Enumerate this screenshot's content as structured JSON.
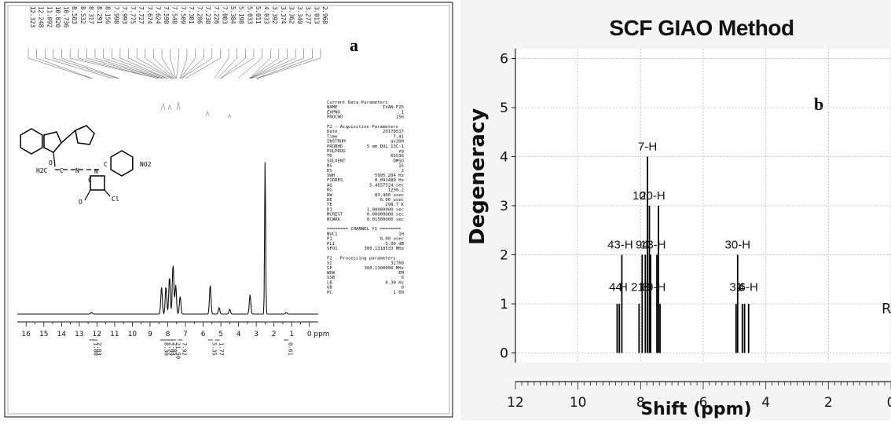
{
  "panel_a": {
    "panel_letter": "a",
    "top_peak_labels": [
      "12.323",
      "12.248",
      "11.092",
      "10.820",
      "10.736",
      "8.503",
      "8.532",
      "8.317",
      "8.291",
      "8.156",
      "7.998",
      "7.993",
      "7.775",
      "7.727",
      "7.674",
      "7.624",
      "7.590",
      "7.548",
      "7.509",
      "7.301",
      "7.286",
      "7.230",
      "7.226",
      "7.003",
      "5.384",
      "5.198",
      "5.033",
      "5.011",
      "4.033",
      "3.392",
      "3.374",
      "3.362",
      "3.340",
      "3.277",
      "3.013",
      "2.968"
    ],
    "params": [
      {
        "k": "Current Data Parameters",
        "v": ""
      },
      {
        "k": "NAME",
        "v": "IVAN-F25"
      },
      {
        "k": "EXPNO",
        "v": "1"
      },
      {
        "k": "PROCNO",
        "v": "156"
      },
      {
        "k": "",
        "v": ""
      },
      {
        "k": "F2 - Acquisition Parameters",
        "v": ""
      },
      {
        "k": "Date_",
        "v": "20170517"
      },
      {
        "k": "Time",
        "v": "7.41"
      },
      {
        "k": "INSTRUM",
        "v": "av300"
      },
      {
        "k": "PROBHD",
        "v": "5 mm DUL 13C-1"
      },
      {
        "k": "PULPROG",
        "v": "zg"
      },
      {
        "k": "TD",
        "v": "65536"
      },
      {
        "k": "SOLVENT",
        "v": "DMSO"
      },
      {
        "k": "NS",
        "v": "16"
      },
      {
        "k": "DS",
        "v": "2"
      },
      {
        "k": "SWH",
        "v": "5995.204 Hz"
      },
      {
        "k": "FIDRES",
        "v": "0.091480 Hz"
      },
      {
        "k": "AQ",
        "v": "5.4657524 sec"
      },
      {
        "k": "RG",
        "v": "1290.2"
      },
      {
        "k": "DW",
        "v": "83.400 usec"
      },
      {
        "k": "DE",
        "v": "6.00 usec"
      },
      {
        "k": "TE",
        "v": "298.7 K"
      },
      {
        "k": "D1",
        "v": "1.00000000 sec"
      },
      {
        "k": "MCREST",
        "v": "0.00000000 sec"
      },
      {
        "k": "MCWRK",
        "v": "0.01500000 sec"
      },
      {
        "k": "",
        "v": ""
      },
      {
        "k": "======== CHANNEL f1 ========",
        "v": ""
      },
      {
        "k": "NUC1",
        "v": "1H"
      },
      {
        "k": "P1",
        "v": "8.00 usec"
      },
      {
        "k": "PL1",
        "v": "-3.00 dB"
      },
      {
        "k": "SFO1",
        "v": "300.1318533 MHz"
      },
      {
        "k": "",
        "v": ""
      },
      {
        "k": "F2 - Processing parameters",
        "v": ""
      },
      {
        "k": "SI",
        "v": "32768"
      },
      {
        "k": "SF",
        "v": "300.1300000 MHz"
      },
      {
        "k": "WDW",
        "v": "EM"
      },
      {
        "k": "SSB",
        "v": "0"
      },
      {
        "k": "LB",
        "v": "0.30 Hz"
      },
      {
        "k": "GB",
        "v": "0"
      },
      {
        "k": "PC",
        "v": "1.00"
      }
    ],
    "molecule_labels": [
      "O",
      "H2C",
      "C",
      "N",
      "N",
      "C",
      "C",
      "O",
      "Cl",
      "NO2"
    ],
    "integrals": [
      {
        "ppm": 12.3,
        "value": "1.00"
      },
      {
        "ppm": 12.1,
        "value": "2.83"
      },
      {
        "ppm": 8.3,
        "value": "8.30"
      },
      {
        "ppm": 8.05,
        "value": "2.99"
      },
      {
        "ppm": 7.85,
        "value": "2.85"
      },
      {
        "ppm": 7.65,
        "value": "21.50"
      },
      {
        "ppm": 7.3,
        "value": "7.92"
      },
      {
        "ppm": 5.6,
        "value": "5.35"
      },
      {
        "ppm": 5.2,
        "value": "1.77"
      },
      {
        "ppm": 1.3,
        "value": "0.61"
      }
    ]
  },
  "chart_data": [
    {
      "type": "line",
      "title": "",
      "xlabel": "",
      "ylabel": "",
      "unit_label": "ppm",
      "xlim": [
        16.5,
        -0.5
      ],
      "ylim": [
        0,
        1
      ],
      "x_ticks": [
        16,
        15,
        14,
        13,
        12,
        11,
        10,
        9,
        8,
        7,
        6,
        5,
        4,
        3,
        2,
        1,
        0
      ],
      "grid": false,
      "peaks": [
        {
          "x": 12.3,
          "y": 0.01
        },
        {
          "x": 8.35,
          "y": 0.17
        },
        {
          "x": 8.1,
          "y": 0.17
        },
        {
          "x": 7.9,
          "y": 0.23
        },
        {
          "x": 7.7,
          "y": 0.31
        },
        {
          "x": 7.55,
          "y": 0.18
        },
        {
          "x": 7.3,
          "y": 0.11
        },
        {
          "x": 5.6,
          "y": 0.18
        },
        {
          "x": 5.1,
          "y": 0.04
        },
        {
          "x": 4.5,
          "y": 0.03
        },
        {
          "x": 3.35,
          "y": 0.12
        },
        {
          "x": 2.5,
          "y": 0.95
        },
        {
          "x": 1.3,
          "y": 0.01
        }
      ]
    },
    {
      "type": "bar",
      "title": "SCF GIAO Method",
      "xlabel": "Shift (ppm)",
      "ylabel": "Degeneracy",
      "xlim": [
        12,
        0
      ],
      "ylim": [
        -0.2,
        6.2
      ],
      "x_ticks": [
        12,
        10,
        8,
        6,
        4,
        2,
        0
      ],
      "y_ticks": [
        0,
        1,
        2,
        3,
        4,
        5,
        6
      ],
      "grid": true,
      "panel_letter": "b",
      "cut_off_label": "R",
      "bars": [
        {
          "x": 8.75,
          "y": 1
        },
        {
          "x": 8.68,
          "y": 1
        },
        {
          "x": 8.6,
          "y": 2
        },
        {
          "x": 8.05,
          "y": 1
        },
        {
          "x": 7.95,
          "y": 2
        },
        {
          "x": 7.85,
          "y": 2
        },
        {
          "x": 7.78,
          "y": 4
        },
        {
          "x": 7.72,
          "y": 3
        },
        {
          "x": 7.68,
          "y": 2
        },
        {
          "x": 7.48,
          "y": 2
        },
        {
          "x": 7.43,
          "y": 3
        },
        {
          "x": 7.38,
          "y": 1
        },
        {
          "x": 4.95,
          "y": 1
        },
        {
          "x": 4.9,
          "y": 2
        },
        {
          "x": 4.75,
          "y": 1
        },
        {
          "x": 4.68,
          "y": 1
        },
        {
          "x": 4.55,
          "y": 1
        }
      ],
      "annotations": [
        {
          "text": "7-H",
          "x": 7.78,
          "y": 4
        },
        {
          "text": "10",
          "x": 8.05,
          "y": 3
        },
        {
          "text": "20-H",
          "x": 7.62,
          "y": 3
        },
        {
          "text": "43-H",
          "x": 8.65,
          "y": 2
        },
        {
          "text": "94",
          "x": 7.95,
          "y": 2
        },
        {
          "text": "13-H",
          "x": 7.6,
          "y": 2
        },
        {
          "text": "30-H",
          "x": 4.9,
          "y": 2
        },
        {
          "text": "44",
          "x": 8.8,
          "y": 1.14
        },
        {
          "text": "H",
          "x": 8.55,
          "y": 1.14
        },
        {
          "text": "21",
          "x": 8.1,
          "y": 1.14
        },
        {
          "text": "8",
          "x": 7.85,
          "y": 1.14
        },
        {
          "text": "9-H",
          "x": 7.5,
          "y": 1.14
        },
        {
          "text": "31",
          "x": 4.95,
          "y": 1.14
        },
        {
          "text": "4",
          "x": 4.78,
          "y": 1.14
        },
        {
          "text": "6-H",
          "x": 4.55,
          "y": 1.14
        }
      ]
    }
  ]
}
